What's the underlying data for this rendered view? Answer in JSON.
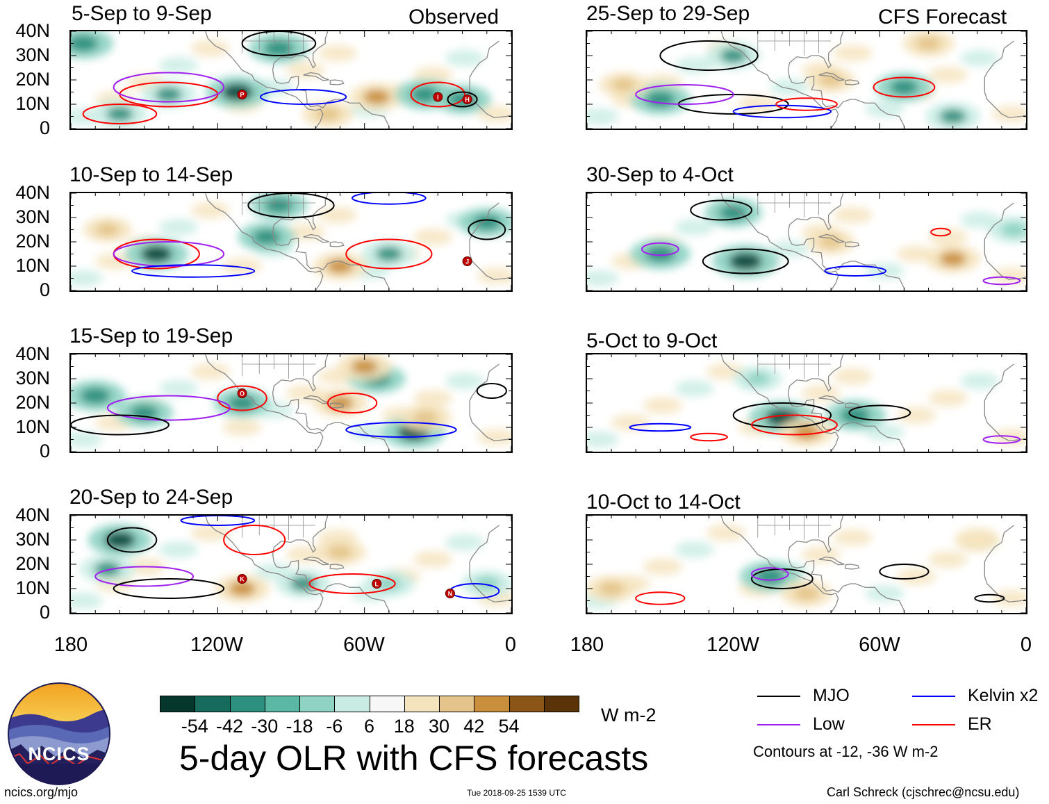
{
  "left_header": "Observed",
  "right_header": "CFS Forecast",
  "colors": {
    "neg_strong": "#0b4a3e",
    "neg_mid": "#2d8f7e",
    "neg_light": "#8ed3c3",
    "neg_faint": "#c8ece3",
    "pos_faint": "#f5e3bd",
    "pos_light": "#e4c48a",
    "pos_mid": "#c98f3c",
    "pos_strong": "#8a5516",
    "mjo": "#000000",
    "kelvin": "#0000ff",
    "low": "#a020f0",
    "er": "#ff0000",
    "coast": "#888888"
  },
  "chart_data": {
    "type": "map_panels",
    "title": "5-day OLR with CFS forecasts",
    "y_ticks": [
      "40N",
      "30N",
      "20N",
      "10N",
      "0"
    ],
    "x_ticks": [
      "180",
      "120W",
      "60W",
      "0"
    ],
    "panels": [
      {
        "title": "5-Sep to 9-Sep",
        "source": "Observed",
        "storm_labels": [
          "P",
          "I",
          "H"
        ],
        "anomalies": [
          {
            "lon": -175,
            "lat": 35,
            "v": -40
          },
          {
            "lon": -140,
            "lat": 14,
            "v": -30
          },
          {
            "lon": -112,
            "lat": 15,
            "v": -45
          },
          {
            "lon": -95,
            "lat": 33,
            "v": -40
          },
          {
            "lon": -55,
            "lat": 13,
            "v": 30
          },
          {
            "lon": -35,
            "lat": 14,
            "v": -40
          },
          {
            "lon": -20,
            "lat": 12,
            "v": -35
          },
          {
            "lon": -160,
            "lat": 6,
            "v": -30
          },
          {
            "lon": -75,
            "lat": 6,
            "v": 25
          }
        ],
        "contours": [
          {
            "type": "er",
            "lon": -140,
            "lat": 14,
            "w": 40,
            "h": 10
          },
          {
            "type": "er",
            "lon": -30,
            "lat": 14,
            "w": 22,
            "h": 10
          },
          {
            "type": "low",
            "lon": -140,
            "lat": 17,
            "w": 45,
            "h": 12
          },
          {
            "type": "kelvin",
            "lon": -85,
            "lat": 13,
            "w": 35,
            "h": 6
          },
          {
            "type": "mjo",
            "lon": -95,
            "lat": 35,
            "w": 30,
            "h": 10
          },
          {
            "type": "mjo",
            "lon": -20,
            "lat": 12,
            "w": 12,
            "h": 6
          },
          {
            "type": "er",
            "lon": -160,
            "lat": 6,
            "w": 30,
            "h": 8
          }
        ]
      },
      {
        "title": "10-Sep to 14-Sep",
        "source": "Observed",
        "storm_labels": [
          "J"
        ],
        "anomalies": [
          {
            "lon": -145,
            "lat": 15,
            "v": -45
          },
          {
            "lon": -100,
            "lat": 22,
            "v": -35
          },
          {
            "lon": -95,
            "lat": 35,
            "v": -35
          },
          {
            "lon": -50,
            "lat": 15,
            "v": -30
          },
          {
            "lon": -70,
            "lat": 10,
            "v": 30
          },
          {
            "lon": -10,
            "lat": 28,
            "v": -35
          },
          {
            "lon": -165,
            "lat": 25,
            "v": 20
          }
        ],
        "contours": [
          {
            "type": "er",
            "lon": -145,
            "lat": 15,
            "w": 35,
            "h": 12
          },
          {
            "type": "low",
            "lon": -140,
            "lat": 15,
            "w": 45,
            "h": 10
          },
          {
            "type": "kelvin",
            "lon": -130,
            "lat": 8,
            "w": 50,
            "h": 5
          },
          {
            "type": "er",
            "lon": -50,
            "lat": 15,
            "w": 35,
            "h": 12
          },
          {
            "type": "mjo",
            "lon": -90,
            "lat": 35,
            "w": 35,
            "h": 10
          },
          {
            "type": "mjo",
            "lon": -10,
            "lat": 25,
            "w": 15,
            "h": 8
          },
          {
            "type": "kelvin",
            "lon": -50,
            "lat": 38,
            "w": 30,
            "h": 5
          }
        ]
      },
      {
        "title": "15-Sep to 19-Sep",
        "source": "Observed",
        "storm_labels": [
          "O"
        ],
        "anomalies": [
          {
            "lon": -170,
            "lat": 23,
            "v": -40
          },
          {
            "lon": -150,
            "lat": 16,
            "v": -35
          },
          {
            "lon": -110,
            "lat": 20,
            "v": -35
          },
          {
            "lon": -55,
            "lat": 30,
            "v": -35
          },
          {
            "lon": -40,
            "lat": 8,
            "v": -45
          },
          {
            "lon": -70,
            "lat": 20,
            "v": 30
          },
          {
            "lon": -35,
            "lat": 14,
            "v": 25
          },
          {
            "lon": -60,
            "lat": 35,
            "v": 30
          }
        ],
        "contours": [
          {
            "type": "er",
            "lon": -110,
            "lat": 22,
            "w": 20,
            "h": 10
          },
          {
            "type": "low",
            "lon": -140,
            "lat": 18,
            "w": 50,
            "h": 10
          },
          {
            "type": "mjo",
            "lon": -160,
            "lat": 11,
            "w": 40,
            "h": 8
          },
          {
            "type": "kelvin",
            "lon": -45,
            "lat": 9,
            "w": 45,
            "h": 6
          },
          {
            "type": "er",
            "lon": -65,
            "lat": 20,
            "w": 20,
            "h": 8
          },
          {
            "type": "mjo",
            "lon": -8,
            "lat": 25,
            "w": 12,
            "h": 6
          }
        ]
      },
      {
        "title": "20-Sep to 24-Sep",
        "source": "Observed",
        "storm_labels": [
          "L",
          "N",
          "K"
        ],
        "anomalies": [
          {
            "lon": -160,
            "lat": 30,
            "v": -45
          },
          {
            "lon": -165,
            "lat": 18,
            "v": -30
          },
          {
            "lon": -85,
            "lat": 12,
            "v": -30
          },
          {
            "lon": -50,
            "lat": 12,
            "v": -25
          },
          {
            "lon": -110,
            "lat": 10,
            "v": 30
          },
          {
            "lon": -70,
            "lat": 25,
            "v": 25
          },
          {
            "lon": -10,
            "lat": 12,
            "v": -25
          }
        ],
        "contours": [
          {
            "type": "mjo",
            "lon": -155,
            "lat": 30,
            "w": 20,
            "h": 10
          },
          {
            "type": "low",
            "lon": -150,
            "lat": 15,
            "w": 40,
            "h": 8
          },
          {
            "type": "mjo",
            "lon": -140,
            "lat": 10,
            "w": 45,
            "h": 8
          },
          {
            "type": "er",
            "lon": -105,
            "lat": 30,
            "w": 25,
            "h": 12
          },
          {
            "type": "er",
            "lon": -65,
            "lat": 12,
            "w": 35,
            "h": 8
          },
          {
            "type": "kelvin",
            "lon": -120,
            "lat": 38,
            "w": 30,
            "h": 4
          },
          {
            "type": "kelvin",
            "lon": -15,
            "lat": 9,
            "w": 20,
            "h": 6
          }
        ]
      },
      {
        "title": "25-Sep to 29-Sep",
        "source": "CFS Forecast",
        "storm_labels": [],
        "anomalies": [
          {
            "lon": -150,
            "lat": 12,
            "v": -40
          },
          {
            "lon": -120,
            "lat": 30,
            "v": -30
          },
          {
            "lon": -50,
            "lat": 17,
            "v": -35
          },
          {
            "lon": -30,
            "lat": 5,
            "v": -30
          },
          {
            "lon": -80,
            "lat": 20,
            "v": 20
          },
          {
            "lon": -40,
            "lat": 35,
            "v": 25
          },
          {
            "lon": -165,
            "lat": 18,
            "v": 20
          }
        ],
        "contours": [
          {
            "type": "mjo",
            "lon": -130,
            "lat": 30,
            "w": 40,
            "h": 12
          },
          {
            "type": "mjo",
            "lon": -120,
            "lat": 10,
            "w": 45,
            "h": 8
          },
          {
            "type": "low",
            "lon": -140,
            "lat": 14,
            "w": 40,
            "h": 8
          },
          {
            "type": "er",
            "lon": -50,
            "lat": 17,
            "w": 25,
            "h": 8
          },
          {
            "type": "kelvin",
            "lon": -100,
            "lat": 7,
            "w": 40,
            "h": 5
          },
          {
            "type": "er",
            "lon": -90,
            "lat": 10,
            "w": 25,
            "h": 5
          }
        ]
      },
      {
        "title": "30-Sep to 4-Oct",
        "source": "CFS Forecast",
        "storm_labels": [],
        "anomalies": [
          {
            "lon": -150,
            "lat": 15,
            "v": -40
          },
          {
            "lon": -115,
            "lat": 12,
            "v": -50
          },
          {
            "lon": -120,
            "lat": 32,
            "v": -35
          },
          {
            "lon": -30,
            "lat": 13,
            "v": 30
          },
          {
            "lon": -5,
            "lat": 25,
            "v": -25
          },
          {
            "lon": -80,
            "lat": 20,
            "v": 20
          }
        ],
        "contours": [
          {
            "type": "mjo",
            "lon": -115,
            "lat": 12,
            "w": 35,
            "h": 10
          },
          {
            "type": "mjo",
            "lon": -125,
            "lat": 33,
            "w": 25,
            "h": 8
          },
          {
            "type": "low",
            "lon": -150,
            "lat": 17,
            "w": 15,
            "h": 5
          },
          {
            "type": "kelvin",
            "lon": -70,
            "lat": 8,
            "w": 25,
            "h": 4
          },
          {
            "type": "er",
            "lon": -35,
            "lat": 24,
            "w": 8,
            "h": 3
          },
          {
            "type": "low",
            "lon": -10,
            "lat": 4,
            "w": 15,
            "h": 3
          }
        ]
      },
      {
        "title": "5-Oct to 9-Oct",
        "source": "CFS Forecast",
        "storm_labels": [],
        "anomalies": [
          {
            "lon": -100,
            "lat": 14,
            "v": -50
          },
          {
            "lon": -70,
            "lat": 15,
            "v": -40
          },
          {
            "lon": -90,
            "lat": 8,
            "v": 30
          },
          {
            "lon": -110,
            "lat": 30,
            "v": -20
          }
        ],
        "contours": [
          {
            "type": "mjo",
            "lon": -100,
            "lat": 15,
            "w": 40,
            "h": 10
          },
          {
            "type": "mjo",
            "lon": -60,
            "lat": 16,
            "w": 25,
            "h": 6
          },
          {
            "type": "er",
            "lon": -95,
            "lat": 11,
            "w": 35,
            "h": 8
          },
          {
            "type": "kelvin",
            "lon": -150,
            "lat": 10,
            "w": 25,
            "h": 3
          },
          {
            "type": "er",
            "lon": -130,
            "lat": 6,
            "w": 15,
            "h": 3
          },
          {
            "type": "low",
            "lon": -10,
            "lat": 5,
            "w": 15,
            "h": 3
          }
        ]
      },
      {
        "title": "10-Oct to 14-Oct",
        "source": "CFS Forecast",
        "storm_labels": [],
        "anomalies": [
          {
            "lon": -105,
            "lat": 15,
            "v": -40
          },
          {
            "lon": -170,
            "lat": 10,
            "v": 25
          },
          {
            "lon": -90,
            "lat": 8,
            "v": 25
          },
          {
            "lon": -20,
            "lat": 30,
            "v": 15
          }
        ],
        "contours": [
          {
            "type": "mjo",
            "lon": -100,
            "lat": 14,
            "w": 25,
            "h": 8
          },
          {
            "type": "mjo",
            "lon": -50,
            "lat": 17,
            "w": 20,
            "h": 6
          },
          {
            "type": "er",
            "lon": -150,
            "lat": 6,
            "w": 20,
            "h": 5
          },
          {
            "type": "low",
            "lon": -105,
            "lat": 16,
            "w": 15,
            "h": 5
          },
          {
            "type": "mjo",
            "lon": -15,
            "lat": 6,
            "w": 12,
            "h": 3
          }
        ]
      }
    ]
  },
  "colorbar": {
    "labels": [
      "-54",
      "-42",
      "-30",
      "-18",
      "-6",
      "6",
      "18",
      "30",
      "42",
      "54"
    ],
    "colors": [
      "#06372d",
      "#166b5d",
      "#2d8f7e",
      "#5bb8a5",
      "#8ed3c3",
      "#c8ece3",
      "#f7f7f7",
      "#f5e3bd",
      "#e4c48a",
      "#c98f3c",
      "#8a5516",
      "#5a3408"
    ],
    "unit": "W m-2"
  },
  "legend": {
    "mjo": "MJO",
    "kelvin": "Kelvin x2",
    "low": "Low",
    "er": "ER",
    "note": "Contours at -12, -36 W m-2"
  },
  "logo": {
    "text": "NCICS"
  },
  "footer": {
    "url": "ncics.org/mjo",
    "timestamp": "Tue 2018-09-25 1539 UTC",
    "credit": "Carl Schreck (cjschrec@ncsu.edu)"
  }
}
